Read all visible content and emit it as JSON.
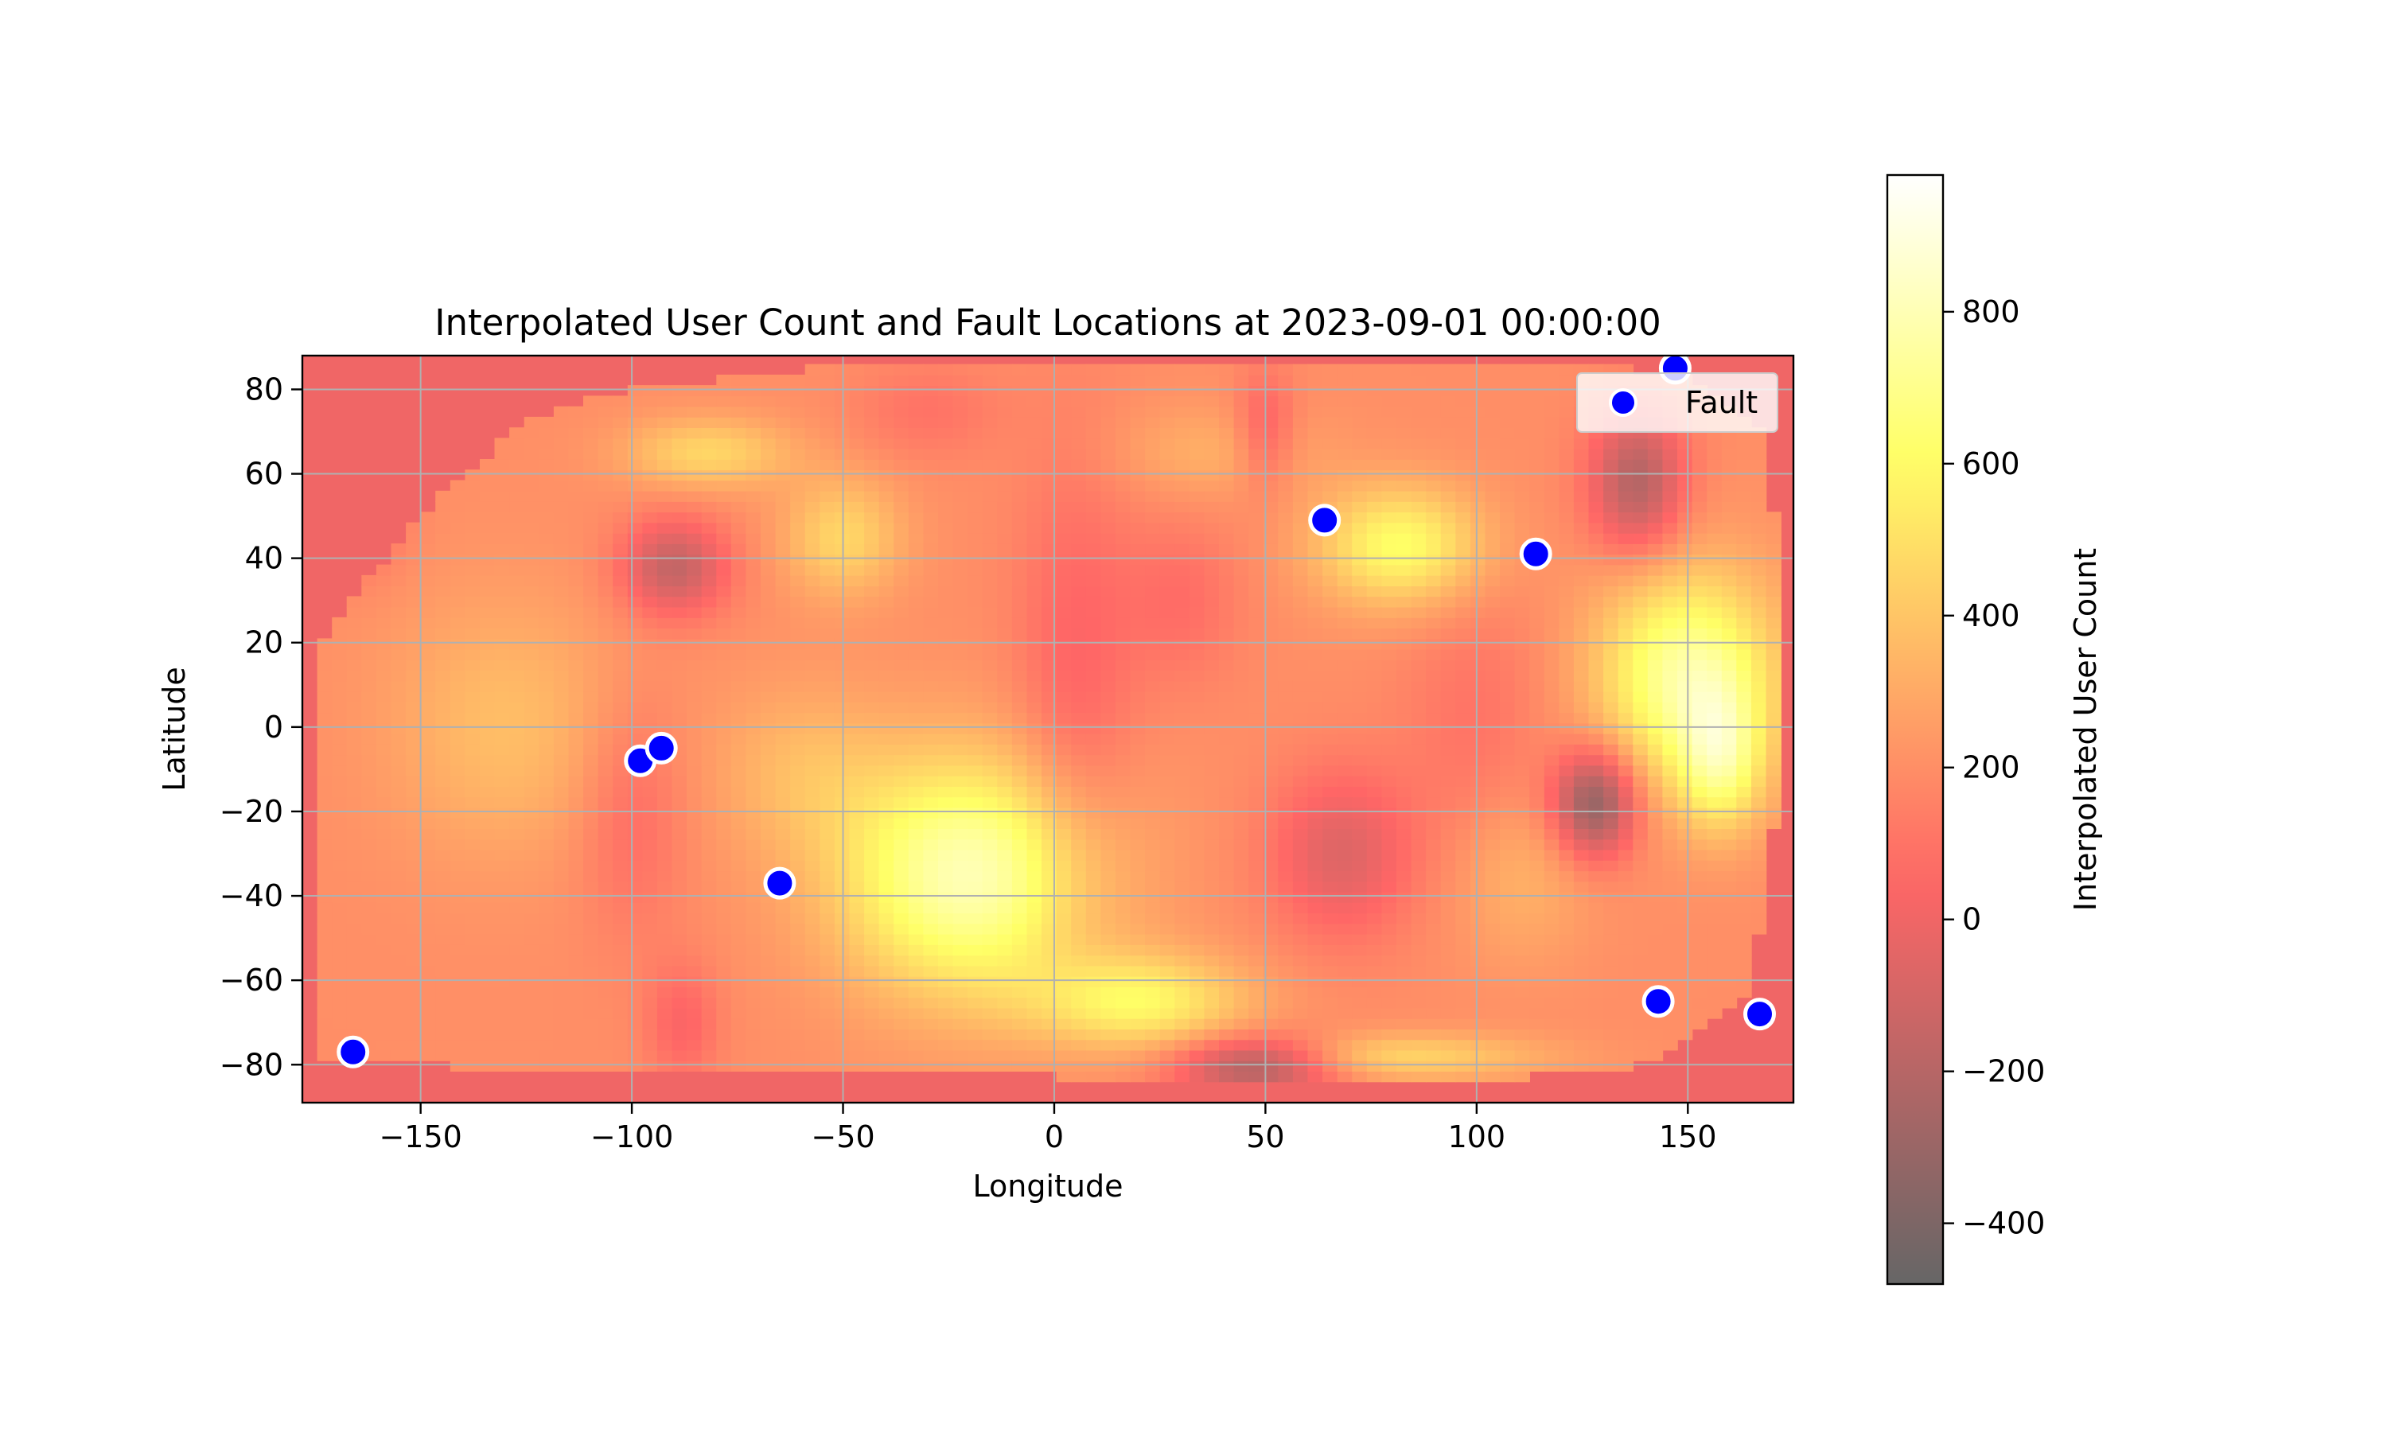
{
  "chart_data": {
    "type": "heatmap",
    "title": "Interpolated User Count and Fault Locations at 2023-09-01 00:00:00",
    "xlabel": "Longitude",
    "ylabel": "Latitude",
    "xlim": [
      -178,
      175
    ],
    "ylim": [
      -89,
      88
    ],
    "xticks": [
      -150,
      -100,
      -50,
      0,
      50,
      100,
      150
    ],
    "yticks": [
      -80,
      -60,
      -40,
      -20,
      0,
      20,
      40,
      60,
      80
    ],
    "grid": true,
    "legend": {
      "placement": "top-right",
      "entries": [
        "Fault"
      ]
    },
    "colorbar": {
      "label": "Interpolated User Count",
      "range": [
        -480,
        980
      ],
      "ticks": [
        -400,
        -200,
        0,
        200,
        400,
        600,
        800
      ],
      "colormap": "hot",
      "alpha": 0.6
    },
    "surface": {
      "base": 200,
      "hull": [
        [
          -174,
          -80
        ],
        [
          -174,
          20
        ],
        [
          -160,
          38
        ],
        [
          -145,
          55
        ],
        [
          -125,
          73
        ],
        [
          -100,
          80
        ],
        [
          -55,
          85
        ],
        [
          40,
          85
        ],
        [
          115,
          86
        ],
        [
          150,
          84
        ],
        [
          168,
          70
        ],
        [
          172,
          35
        ],
        [
          171,
          -20
        ],
        [
          165,
          -62
        ],
        [
          140,
          -80
        ],
        [
          110,
          -83
        ],
        [
          60,
          -85
        ],
        [
          20,
          -84
        ],
        [
          -10,
          -82
        ],
        [
          -100,
          -82
        ],
        [
          -150,
          -80
        ]
      ],
      "blobs": [
        {
          "x": -20,
          "y": -35,
          "v": 600,
          "sx": 22,
          "sy": 20
        },
        {
          "x": 150,
          "y": 12,
          "v": 560,
          "sx": 15,
          "sy": 18
        },
        {
          "x": 158,
          "y": -8,
          "v": 360,
          "sx": 7,
          "sy": 12
        },
        {
          "x": 82,
          "y": 43,
          "v": 420,
          "sx": 14,
          "sy": 10
        },
        {
          "x": -50,
          "y": 45,
          "v": 260,
          "sx": 10,
          "sy": 10
        },
        {
          "x": -82,
          "y": 65,
          "v": 260,
          "sx": 14,
          "sy": 6
        },
        {
          "x": 20,
          "y": -65,
          "v": 380,
          "sx": 18,
          "sy": 8
        },
        {
          "x": 80,
          "y": -78,
          "v": 260,
          "sx": 25,
          "sy": 4
        },
        {
          "x": -130,
          "y": 0,
          "v": 170,
          "sx": 20,
          "sy": 22
        },
        {
          "x": -60,
          "y": -10,
          "v": 140,
          "sx": 15,
          "sy": 15
        },
        {
          "x": 110,
          "y": -35,
          "v": 140,
          "sx": 12,
          "sy": 15
        },
        {
          "x": 38,
          "y": 65,
          "v": 120,
          "sx": 18,
          "sy": 8
        },
        {
          "x": -90,
          "y": 38,
          "v": -360,
          "sx": 9,
          "sy": 8
        },
        {
          "x": 128,
          "y": -18,
          "v": -560,
          "sx": 7,
          "sy": 9
        },
        {
          "x": 138,
          "y": 58,
          "v": -420,
          "sx": 8,
          "sy": 12
        },
        {
          "x": 48,
          "y": -80,
          "v": -500,
          "sx": 14,
          "sy": 5
        },
        {
          "x": 68,
          "y": -30,
          "v": -260,
          "sx": 12,
          "sy": 14
        },
        {
          "x": 50,
          "y": 70,
          "v": -200,
          "sx": 5,
          "sy": 10
        },
        {
          "x": -100,
          "y": -20,
          "v": -140,
          "sx": 9,
          "sy": 20
        },
        {
          "x": 5,
          "y": 10,
          "v": -160,
          "sx": 10,
          "sy": 40
        },
        {
          "x": 30,
          "y": 30,
          "v": -120,
          "sx": 10,
          "sy": 14
        },
        {
          "x": -30,
          "y": 75,
          "v": -100,
          "sx": 12,
          "sy": 8
        },
        {
          "x": -88,
          "y": -70,
          "v": -160,
          "sx": 6,
          "sy": 10
        },
        {
          "x": 100,
          "y": 0,
          "v": -100,
          "sx": 12,
          "sy": 25
        },
        {
          "x": -165,
          "y": 50,
          "v": -150,
          "sx": 8,
          "sy": 10
        }
      ]
    },
    "series": [
      {
        "name": "Fault",
        "type": "scatter",
        "color": "#0000ff",
        "points": [
          {
            "x": -166,
            "y": -77
          },
          {
            "x": -98,
            "y": -8
          },
          {
            "x": -93,
            "y": -5
          },
          {
            "x": -65,
            "y": -37
          },
          {
            "x": 64,
            "y": 49
          },
          {
            "x": 114,
            "y": 41
          },
          {
            "x": 147,
            "y": 85
          },
          {
            "x": 143,
            "y": -65
          },
          {
            "x": 167,
            "y": -68
          }
        ]
      }
    ]
  }
}
